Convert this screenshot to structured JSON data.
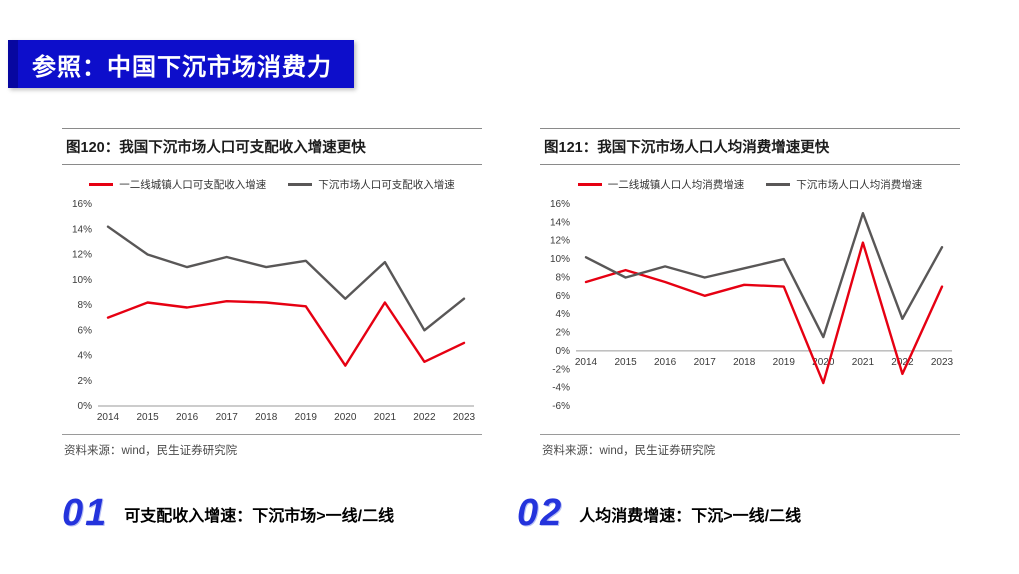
{
  "slide": {
    "title": "参照：中国下沉市场消费力",
    "accent_color": "#0d0ecb"
  },
  "chart_data": [
    {
      "type": "line",
      "title": "图120：我国下沉市场人口可支配收入增速更快",
      "categories": [
        "2014",
        "2015",
        "2016",
        "2017",
        "2018",
        "2019",
        "2020",
        "2021",
        "2022",
        "2023"
      ],
      "series": [
        {
          "name": "一二线城镇人口可支配收入增速",
          "color": "#e60012",
          "values": [
            7.0,
            8.2,
            7.8,
            8.3,
            8.2,
            7.9,
            3.2,
            8.2,
            3.5,
            5.0
          ]
        },
        {
          "name": "下沉市场人口可支配收入增速",
          "color": "#595757",
          "values": [
            14.2,
            12.0,
            11.0,
            11.8,
            11.0,
            11.5,
            8.5,
            11.4,
            6.0,
            8.5
          ]
        }
      ],
      "xlabel": "",
      "ylabel": "",
      "ylim": [
        0,
        16
      ],
      "ytick_step": 2,
      "tick_format": "percent",
      "grid": false,
      "legend_position": "top",
      "source": "资料来源：wind，民生证券研究院"
    },
    {
      "type": "line",
      "title": "图121：我国下沉市场人口人均消费增速更快",
      "categories": [
        "2014",
        "2015",
        "2016",
        "2017",
        "2018",
        "2019",
        "2020",
        "2021",
        "2022",
        "2023"
      ],
      "series": [
        {
          "name": "一二线城镇人口人均消费增速",
          "color": "#e60012",
          "values": [
            7.5,
            8.8,
            7.5,
            6.0,
            7.2,
            7.0,
            -3.5,
            11.8,
            -2.5,
            7.0
          ]
        },
        {
          "name": "下沉市场人口人均消费增速",
          "color": "#595757",
          "values": [
            10.2,
            8.0,
            9.2,
            8.0,
            9.0,
            10.0,
            1.5,
            15.0,
            3.5,
            11.3
          ]
        }
      ],
      "xlabel": "",
      "ylabel": "",
      "ylim": [
        -6,
        16
      ],
      "ytick_step": 2,
      "tick_format": "percent",
      "grid": false,
      "legend_position": "top",
      "source": "资料来源：wind，民生证券研究院"
    }
  ],
  "notes": [
    {
      "number": "01",
      "text": "可支配收入增速：下沉市场>一线/二线"
    },
    {
      "number": "02",
      "text": "人均消费增速：下沉>一线/二线"
    }
  ]
}
